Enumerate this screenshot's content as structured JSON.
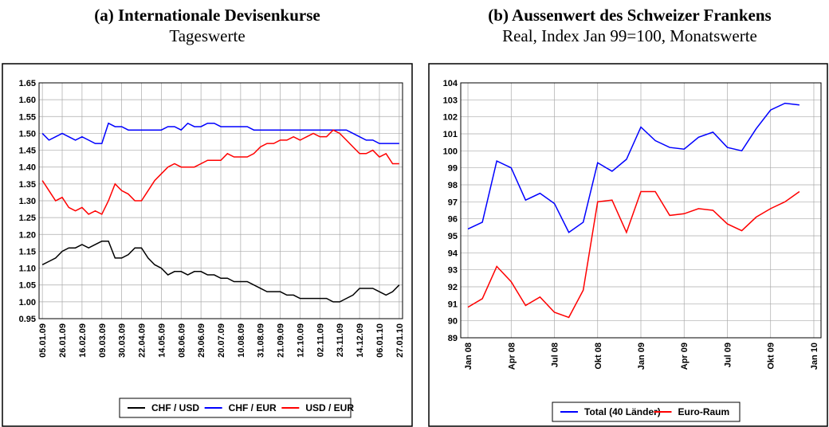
{
  "chart_data": [
    {
      "type": "line",
      "title": "(a) Internationale Devisenkurse",
      "subtitle": "Tageswerte",
      "categories": [
        "05.01.09",
        null,
        null,
        "26.01.09",
        null,
        null,
        "16.02.09",
        null,
        null,
        "09.03.09",
        null,
        null,
        "30.03.09",
        null,
        null,
        "22.04.09",
        null,
        null,
        "14.05.09",
        null,
        null,
        "08.06.09",
        null,
        null,
        "29.06.09",
        null,
        null,
        "20.07.09",
        null,
        null,
        "10.08.09",
        null,
        null,
        "31.08.09",
        null,
        null,
        "21.09.09",
        null,
        null,
        "12.10.09",
        null,
        null,
        "02.11.09",
        null,
        null,
        "23.11.09",
        null,
        null,
        "14.12.09",
        null,
        null,
        "06.01.10",
        null,
        null,
        "27.01.10"
      ],
      "series": [
        {
          "name": "CHF / USD",
          "color": "#000000",
          "values": [
            1.11,
            1.12,
            1.13,
            1.15,
            1.16,
            1.16,
            1.17,
            1.16,
            1.17,
            1.18,
            1.18,
            1.13,
            1.13,
            1.14,
            1.16,
            1.16,
            1.13,
            1.11,
            1.1,
            1.08,
            1.09,
            1.09,
            1.08,
            1.09,
            1.09,
            1.08,
            1.08,
            1.07,
            1.07,
            1.06,
            1.06,
            1.06,
            1.05,
            1.04,
            1.03,
            1.03,
            1.03,
            1.02,
            1.02,
            1.01,
            1.01,
            1.01,
            1.01,
            1.01,
            1.0,
            1.0,
            1.01,
            1.02,
            1.04,
            1.04,
            1.04,
            1.03,
            1.02,
            1.03,
            1.05
          ]
        },
        {
          "name": "CHF / EUR",
          "color": "#0000ff",
          "values": [
            1.5,
            1.48,
            1.49,
            1.5,
            1.49,
            1.48,
            1.49,
            1.48,
            1.47,
            1.47,
            1.53,
            1.52,
            1.52,
            1.51,
            1.51,
            1.51,
            1.51,
            1.51,
            1.51,
            1.52,
            1.52,
            1.51,
            1.53,
            1.52,
            1.52,
            1.53,
            1.53,
            1.52,
            1.52,
            1.52,
            1.52,
            1.52,
            1.51,
            1.51,
            1.51,
            1.51,
            1.51,
            1.51,
            1.51,
            1.51,
            1.51,
            1.51,
            1.51,
            1.51,
            1.51,
            1.51,
            1.51,
            1.5,
            1.49,
            1.48,
            1.48,
            1.47,
            1.47,
            1.47,
            1.47
          ]
        },
        {
          "name": "USD / EUR",
          "color": "#ff0000",
          "values": [
            1.36,
            1.33,
            1.3,
            1.31,
            1.28,
            1.27,
            1.28,
            1.26,
            1.27,
            1.26,
            1.3,
            1.35,
            1.33,
            1.32,
            1.3,
            1.3,
            1.33,
            1.36,
            1.38,
            1.4,
            1.41,
            1.4,
            1.4,
            1.4,
            1.41,
            1.42,
            1.42,
            1.42,
            1.44,
            1.43,
            1.43,
            1.43,
            1.44,
            1.46,
            1.47,
            1.47,
            1.48,
            1.48,
            1.49,
            1.48,
            1.49,
            1.5,
            1.49,
            1.49,
            1.51,
            1.5,
            1.48,
            1.46,
            1.44,
            1.44,
            1.45,
            1.43,
            1.44,
            1.41,
            1.41
          ]
        }
      ],
      "ylim": [
        0.95,
        1.65
      ],
      "yticks": [
        {
          "value": 0.95,
          "label": "0.95"
        },
        {
          "value": 1.0,
          "label": "1.00"
        },
        {
          "value": 1.05,
          "label": "1.05"
        },
        {
          "value": 1.1,
          "label": "1.10"
        },
        {
          "value": 1.15,
          "label": "1.15"
        },
        {
          "value": 1.2,
          "label": "1.20"
        },
        {
          "value": 1.25,
          "label": "1.25"
        },
        {
          "value": 1.3,
          "label": "1.30"
        },
        {
          "value": 1.35,
          "label": "1.35"
        },
        {
          "value": 1.4,
          "label": "1.40"
        },
        {
          "value": 1.45,
          "label": "1.45"
        },
        {
          "value": 1.5,
          "label": "1.50"
        },
        {
          "value": 1.55,
          "label": "1.55"
        },
        {
          "value": 1.6,
          "label": "1.60"
        },
        {
          "value": 1.65,
          "label": "1.65"
        }
      ],
      "grid": true
    },
    {
      "type": "line",
      "title": "(b) Aussenwert des Schweizer Frankens",
      "subtitle": "Real, Index Jan 99=100, Monatswerte",
      "categories": [
        "Jan 08",
        null,
        null,
        "Apr 08",
        null,
        null,
        "Jul 08",
        null,
        null,
        "Okt 08",
        null,
        null,
        "Jan 09",
        null,
        null,
        "Apr 09",
        null,
        null,
        "Jul 09",
        null,
        null,
        "Okt 09",
        null,
        null,
        "Jan 10"
      ],
      "series": [
        {
          "name": "Total (40 Länder)",
          "color": "#0000ff",
          "values": [
            95.4,
            95.8,
            99.4,
            99.0,
            97.1,
            97.5,
            96.9,
            95.2,
            95.8,
            99.3,
            98.8,
            99.5,
            101.4,
            100.6,
            100.2,
            100.1,
            100.8,
            101.1,
            100.2,
            100.0,
            101.3,
            102.4,
            102.8,
            102.7,
            null
          ]
        },
        {
          "name": "Euro-Raum",
          "color": "#ff0000",
          "values": [
            90.8,
            91.3,
            93.2,
            92.3,
            90.9,
            91.4,
            90.5,
            90.2,
            91.8,
            97.0,
            97.1,
            95.2,
            97.6,
            97.6,
            96.2,
            96.3,
            96.6,
            96.5,
            95.7,
            95.3,
            96.1,
            96.6,
            97.0,
            97.6,
            null
          ]
        }
      ],
      "ylim": [
        89,
        104
      ],
      "yticks": [
        89,
        90,
        91,
        92,
        93,
        94,
        95,
        96,
        97,
        98,
        99,
        100,
        101,
        102,
        103,
        104
      ],
      "grid": true
    }
  ]
}
